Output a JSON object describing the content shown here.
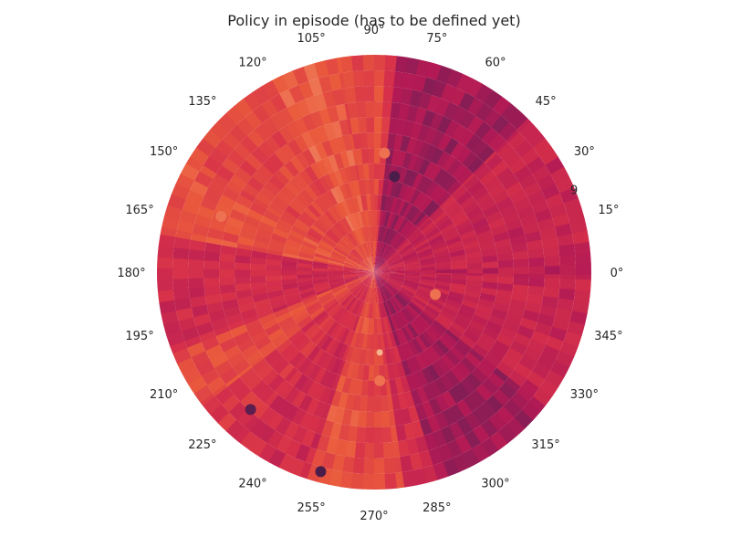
{
  "chart_data": {
    "type": "heatmap",
    "projection": "polar",
    "title": "Policy in episode (has to be defined yet)",
    "theta_unit": "degrees",
    "theta_tick_labels": [
      "0°",
      "15°",
      "30°",
      "45°",
      "60°",
      "75°",
      "90°",
      "105°",
      "120°",
      "135°",
      "150°",
      "165°",
      "180°",
      "195°",
      "210°",
      "225°",
      "240°",
      "255°",
      "270°",
      "285°",
      "300°",
      "315°",
      "330°",
      "345°"
    ],
    "radial_tick_labels": [
      "9"
    ],
    "grid": false,
    "colormap": "rocket",
    "colors": {
      "dark": "#2a1a3e",
      "plum": "#6b1f55",
      "magenta": "#b21a55",
      "red": "#d6304a",
      "orange": "#ea5a3c",
      "light": "#f6b48f"
    },
    "sectors": [
      {
        "theta": [
          -1,
          2
        ],
        "level": 0.45
      },
      {
        "theta": [
          2,
          45
        ],
        "level": 0.5
      },
      {
        "theta": [
          45,
          84
        ],
        "level": 0.35
      },
      {
        "theta": [
          84,
          87
        ],
        "level": 0.6
      },
      {
        "theta": [
          87,
          100
        ],
        "level": 0.72
      },
      {
        "theta": [
          100,
          118
        ],
        "level": 0.78
      },
      {
        "theta": [
          118,
          150
        ],
        "level": 0.7
      },
      {
        "theta": [
          150,
          170
        ],
        "level": 0.75
      },
      {
        "theta": [
          170,
          202
        ],
        "level": 0.55
      },
      {
        "theta": [
          202,
          218
        ],
        "level": 0.72
      },
      {
        "theta": [
          218,
          232
        ],
        "level": 0.6
      },
      {
        "theta": [
          232,
          252
        ],
        "level": 0.55
      },
      {
        "theta": [
          252,
          264
        ],
        "level": 0.75
      },
      {
        "theta": [
          264,
          278
        ],
        "level": 0.7
      },
      {
        "theta": [
          278,
          287
        ],
        "level": 0.55
      },
      {
        "theta": [
          287,
          322
        ],
        "level": 0.35
      },
      {
        "theta": [
          322,
          359
        ],
        "level": 0.5
      }
    ],
    "hot_spots": [
      {
        "theta": 78,
        "r": 0.45,
        "level": 0.1
      },
      {
        "theta": 85,
        "r": 0.55,
        "level": 0.85
      },
      {
        "theta": 160,
        "r": 0.75,
        "level": 0.85
      },
      {
        "theta": 228,
        "r": 0.85,
        "level": 0.15
      },
      {
        "theta": 255,
        "r": 0.95,
        "level": 0.1
      },
      {
        "theta": 274,
        "r": 0.37,
        "level": 1.0
      },
      {
        "theta": 273,
        "r": 0.5,
        "level": 0.85
      },
      {
        "theta": 340,
        "r": 0.3,
        "level": 0.85
      }
    ]
  }
}
